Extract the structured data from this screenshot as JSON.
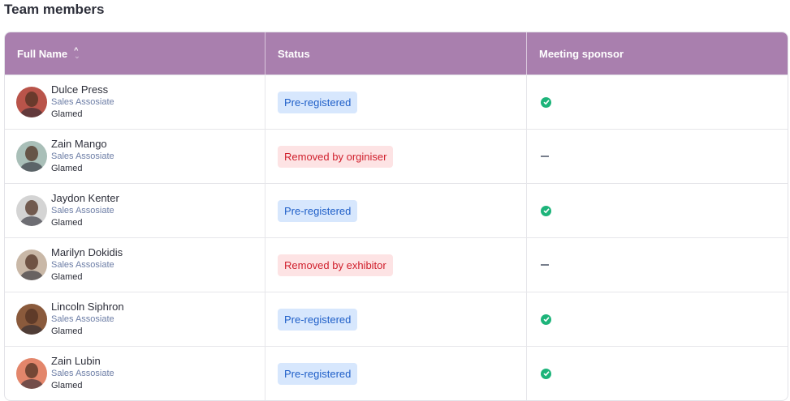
{
  "title": "Team members",
  "columns": {
    "name": "Full Name",
    "status": "Status",
    "sponsor": "Meeting sponsor"
  },
  "rows": [
    {
      "name": "Dulce Press",
      "role": "Sales Assosiate",
      "company": "Glamed",
      "status": "Pre-registered",
      "status_type": "pre",
      "sponsor": true,
      "avatar_color": "#b9544a"
    },
    {
      "name": "Zain Mango",
      "role": "Sales Assosiate",
      "company": "Glamed",
      "status": "Removed by orginiser",
      "status_type": "removed",
      "sponsor": false,
      "avatar_color": "#a9bfb8"
    },
    {
      "name": "Jaydon Kenter",
      "role": "Sales Assosiate",
      "company": "Glamed",
      "status": "Pre-registered",
      "status_type": "pre",
      "sponsor": true,
      "avatar_color": "#d4d4d4"
    },
    {
      "name": "Marilyn Dokidis",
      "role": "Sales Assosiate",
      "company": "Glamed",
      "status": "Removed by exhibitor",
      "status_type": "removed",
      "sponsor": false,
      "avatar_color": "#c9b8a7"
    },
    {
      "name": "Lincoln Siphron",
      "role": "Sales Assosiate",
      "company": "Glamed",
      "status": "Pre-registered",
      "status_type": "pre",
      "sponsor": true,
      "avatar_color": "#8a5a3c"
    },
    {
      "name": "Zain Lubin",
      "role": "Sales Assosiate",
      "company": "Glamed",
      "status": "Pre-registered",
      "status_type": "pre",
      "sponsor": true,
      "avatar_color": "#e3866b"
    }
  ]
}
